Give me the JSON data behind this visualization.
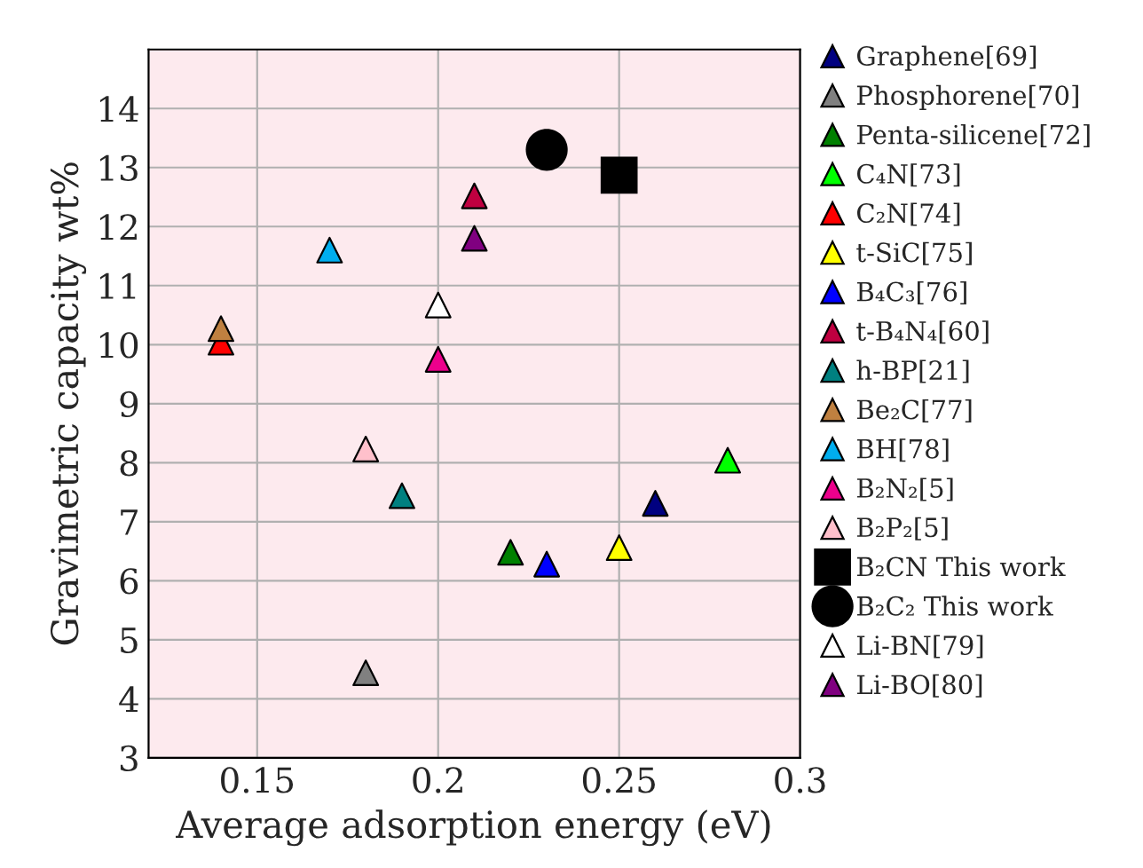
{
  "chart_data": {
    "type": "scatter",
    "xlabel": "Average adsorption energy (eV)",
    "ylabel": "Gravimetric capacity wt%",
    "xlim": [
      0.12,
      0.3
    ],
    "xticks": [
      {
        "value": 0.15,
        "label": "0.15"
      },
      {
        "value": 0.2,
        "label": "0.2"
      },
      {
        "value": 0.25,
        "label": "0.25"
      },
      {
        "value": 0.3,
        "label": "0.3"
      }
    ],
    "ylim": [
      3,
      15
    ],
    "yticks": [
      3,
      4,
      5,
      6,
      7,
      8,
      9,
      10,
      11,
      12,
      13,
      14
    ],
    "grid": true,
    "legend": "right",
    "series": [
      {
        "name": "Graphene[69]",
        "color": "#000080",
        "marker": "triangle",
        "x": [
          0.26
        ],
        "values": [
          7.31
        ]
      },
      {
        "name": "Phosphorene[70]",
        "color": "#808080",
        "marker": "triangle",
        "x": [
          0.18
        ],
        "values": [
          4.44
        ]
      },
      {
        "name": "Penta-silicene[72]",
        "color": "#008000",
        "marker": "triangle",
        "x": [
          0.22
        ],
        "values": [
          6.48
        ]
      },
      {
        "name": "C₄N[73]",
        "color": "#00ff00",
        "marker": "triangle",
        "x": [
          0.28
        ],
        "values": [
          8.04
        ]
      },
      {
        "name": "C₂N[74]",
        "color": "#ff0000",
        "marker": "triangle",
        "x": [
          0.14
        ],
        "values": [
          10.04
        ]
      },
      {
        "name": "t-SiC[75]",
        "color": "#ffff00",
        "marker": "triangle",
        "x": [
          0.25
        ],
        "values": [
          6.56
        ]
      },
      {
        "name": "B₄C₃[76]",
        "color": "#0000ff",
        "marker": "triangle",
        "x": [
          0.23
        ],
        "values": [
          6.28
        ]
      },
      {
        "name": "t-B₄N₄[60]",
        "color": "#bf0040",
        "marker": "triangle",
        "x": [
          0.21
        ],
        "values": [
          12.52
        ]
      },
      {
        "name": "h-BP[21]",
        "color": "#008080",
        "marker": "triangle",
        "x": [
          0.19
        ],
        "values": [
          7.44
        ]
      },
      {
        "name": "Be₂C[77]",
        "color": "#bf8040",
        "marker": "triangle",
        "x": [
          0.14
        ],
        "values": [
          10.27
        ]
      },
      {
        "name": "BH[78]",
        "color": "#00aeef",
        "marker": "triangle",
        "x": [
          0.17
        ],
        "values": [
          11.6
        ]
      },
      {
        "name": "B₂N₂[5]",
        "color": "#ec008c",
        "marker": "triangle",
        "x": [
          0.2
        ],
        "values": [
          9.75
        ]
      },
      {
        "name": "B₂P₂[5]",
        "color": "#ffc0cb",
        "marker": "triangle",
        "x": [
          0.18
        ],
        "values": [
          8.23
        ]
      },
      {
        "name": "B₂CN This work",
        "color": "#000000",
        "marker": "square",
        "x": [
          0.25
        ],
        "values": [
          12.87
        ]
      },
      {
        "name": "B₂C₂ This work",
        "color": "#000000",
        "marker": "circle",
        "x": [
          0.23
        ],
        "values": [
          13.3
        ]
      },
      {
        "name": "Li-BN[79]",
        "color": "#ffffff",
        "marker": "triangle",
        "x": [
          0.2
        ],
        "values": [
          10.67
        ]
      },
      {
        "name": "Li-BO[80]",
        "color": "#800080",
        "marker": "triangle",
        "x": [
          0.21
        ],
        "values": [
          11.8
        ]
      }
    ]
  }
}
